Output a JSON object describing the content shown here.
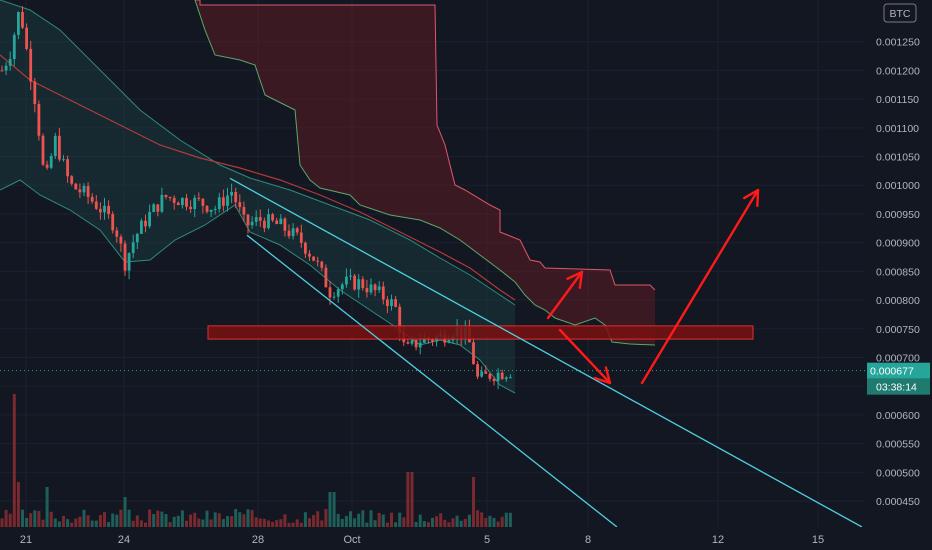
{
  "chart_data": {
    "type": "candlestick",
    "symbol": "BTC",
    "currency_badge": "BTC",
    "price_axis": {
      "ylim": [
        0.00042,
        0.00132
      ],
      "ticks": [
        "0.000450",
        "0.000500",
        "0.000550",
        "0.000600",
        "0.000650",
        "0.000700",
        "0.000750",
        "0.000800",
        "0.000850",
        "0.000900",
        "0.000950",
        "0.001000",
        "0.001050",
        "0.001100",
        "0.001150",
        "0.001200",
        "0.001250"
      ]
    },
    "time_axis": {
      "ticks": [
        "21",
        "24",
        "28",
        "Oct",
        "5",
        "8",
        "12",
        "15"
      ]
    },
    "last_price": "0.000677",
    "countdown": "03:38:14",
    "colors": {
      "background": "#131722",
      "up": "#26a69a",
      "down": "#ef5350",
      "channel": "#4dd0e1",
      "annotation": "#ff1a1a",
      "resistance_zone": "#8b1a1a"
    },
    "descending_channel": {
      "upper_line": {
        "from": [
          "Sep 26",
          0.001012
        ],
        "to": [
          "Oct 16",
          0.00042
        ]
      },
      "lower_line": {
        "from": [
          "Sep 26",
          0.000913
        ],
        "to": [
          "Oct 8",
          0.00042
        ]
      }
    },
    "resistance_zone": {
      "low": 0.000732,
      "high": 0.000755,
      "from": "Sep 20",
      "to": "Oct 12"
    },
    "annotations": [
      "arrow up to 0.000850",
      "arrow down to 0.000670",
      "arrow up to 0.000995"
    ]
  }
}
